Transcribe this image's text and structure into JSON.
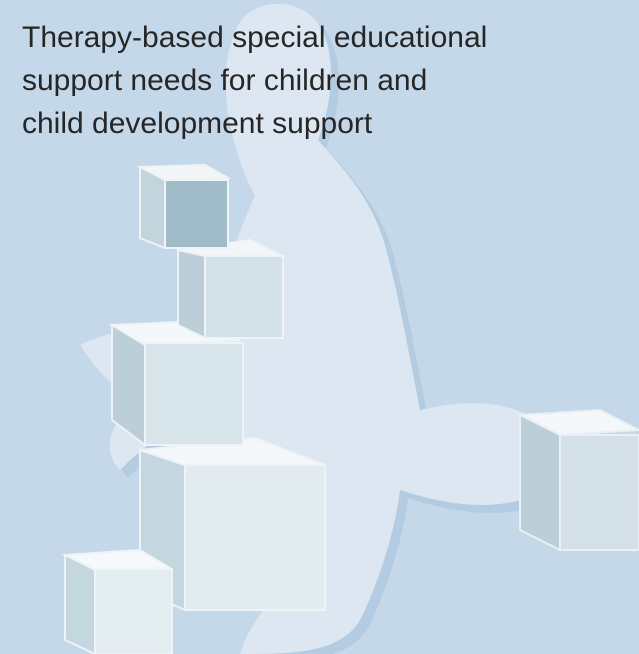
{
  "heading": {
    "lines": [
      "Therapy-based special educational",
      "support needs for children and",
      "child development support"
    ]
  }
}
